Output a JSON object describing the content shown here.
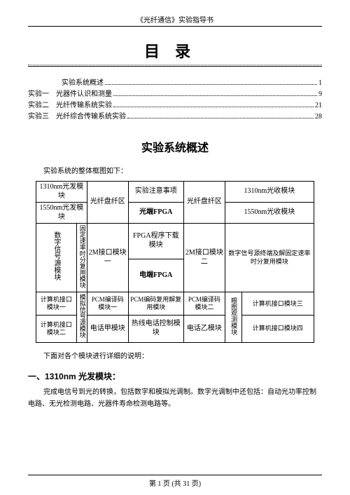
{
  "header": "《光纤通信》实验指导书",
  "title": "目录",
  "toc": [
    {
      "indent": 48,
      "label": "实验系统概述",
      "page": "1"
    },
    {
      "indent": 0,
      "label": "实验一　光器件认识和测量",
      "page": "9"
    },
    {
      "indent": 0,
      "label": "实验二　光纤传输系统实验",
      "page": "21"
    },
    {
      "indent": 0,
      "label": "实验三　光纤综合传输系统实验",
      "page": "28"
    }
  ],
  "section_title": "实验系统概述",
  "intro": "实验系统的整体框图如下：",
  "diagram": {
    "r1c1": "1310nm光发模块",
    "r1c2": "光纤盘纤区",
    "r1c3": "实验注意事项",
    "r1c4": "光纤盘纤区",
    "r1c5": "1310nm光收模块",
    "r2c1": "1550nm光发模块",
    "r2c3": "光端FPGA",
    "r2c5": "1550nm光收模块",
    "r3c1": "数字信号源模块",
    "r3c2": "固定速率时分复用模块",
    "r3c3": "2M接口模块一",
    "r3c4": "FPGA程序下载模块",
    "r3c5": "2M接口模块二",
    "r3c6": "数字信号源终端及解固定速率时分复用模块",
    "r4c4": "电端FPGA",
    "r5c1": "计算机接口模块一",
    "r5c2": "模拟信号源模块",
    "r5c3": "PCM编译码模块一",
    "r5c4": "PCM编码复用解复用模块",
    "r5c5": "PCM编译码模块二",
    "r5c6": "眼图观测模块",
    "r5c7": "计算机接口模块三",
    "r6c1": "计算机接口模块二",
    "r6c3": "电话甲模块",
    "r6c4": "热线电话控制模块",
    "r6c5": "电话乙模块",
    "r6c7": "计算机接口模块四"
  },
  "caption": "下面对各个模块进行详细的说明：",
  "sub_heading": "一、1310nm 光发模块：",
  "body": "完成电信号到光的转换，包括数字和模拟光调制。数字光调制中还包括：自动光功率控制电路、无光检测电路、光器件寿命检测电路等。",
  "footer": "第 1 页 (共 31 页)"
}
